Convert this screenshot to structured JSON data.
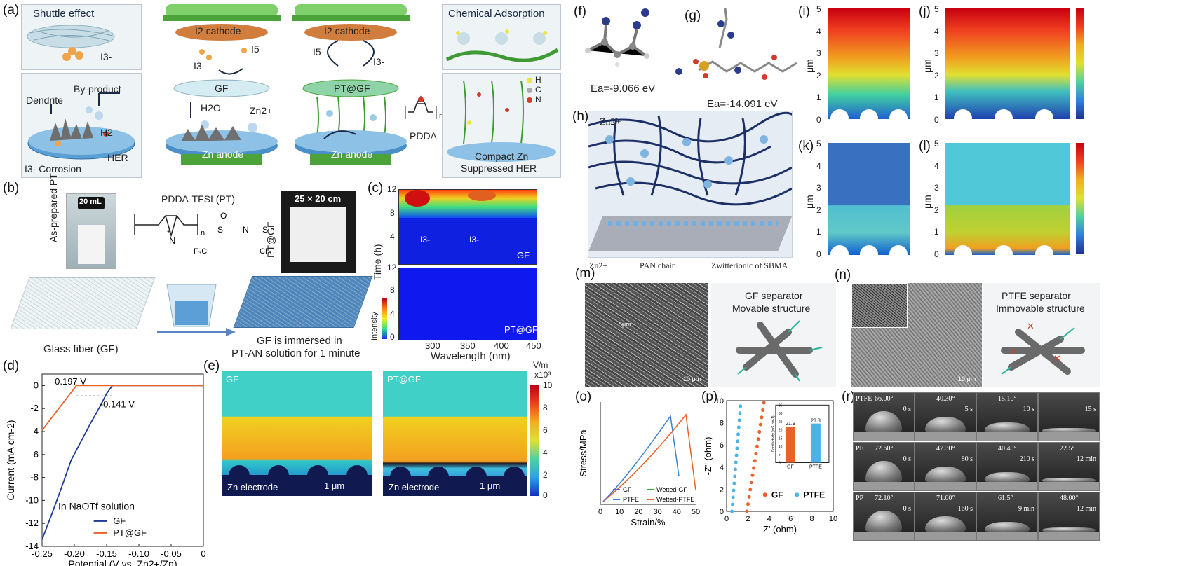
{
  "panels": {
    "a": "(a)",
    "b": "(b)",
    "c": "(c)",
    "d": "(d)",
    "e": "(e)",
    "f": "(f)",
    "g": "(g)",
    "h": "(h)",
    "i": "(i)",
    "j": "(j)",
    "k": "(k)",
    "l": "(l)",
    "m": "(m)",
    "n": "(n)",
    "o": "(o)",
    "p": "(p)",
    "r": "(r)"
  },
  "a": {
    "shuttle": "Shuttle effect",
    "i3_left": "I3-",
    "dendrite": "Dendrite",
    "byproduct": "By-product",
    "h2": "H2",
    "her": "HER",
    "corrosion": "I3- Corrosion",
    "cathode1": "I2 cathode",
    "cathode2": "I2 cathode",
    "i5_1": "I5-",
    "i3_1": "I3-",
    "gf": "GF",
    "h2o": "H2O",
    "zn2": "Zn2+",
    "anode1": "Zn anode",
    "i5_2": "I5-",
    "i3_2": "I3-",
    "ptgf": "PT@GF",
    "anode2": "Zn anode",
    "pdda": "PDDA",
    "n_sub": "n",
    "chem": "Chemical Adsorption",
    "legend": [
      "H",
      "C",
      "N"
    ],
    "compact1": "Compact Zn",
    "compact2": "Suppressed HER"
  },
  "b": {
    "vial": "20 mL",
    "asprep": "As-prepared PT",
    "pdda_tfsi": "PDDA-TFSI (PT)",
    "size": "25 × 20 cm",
    "ptgf": "PT@GF",
    "glass": "Glass fiber (GF)",
    "immersed1": "GF is immersed in",
    "immersed2": "PT-AN solution for 1 minute"
  },
  "c": {
    "ylabel": "Time (h)",
    "xlabel": "Wavelength (nm)",
    "gf": "GF",
    "ptgf": "PT@GF",
    "intensity": "Intensity",
    "i3a": "I3-",
    "i3b": "I3-",
    "yticks": [
      "0",
      "4",
      "8",
      "12"
    ],
    "xticks": [
      "300",
      "350",
      "400",
      "450"
    ]
  },
  "chart_data": {
    "type": "line",
    "title": "",
    "xlabel": "Potential (V vs. Zn2+/Zn)",
    "ylabel": "Current (mA cm-2)",
    "xlim": [
      -0.25,
      0
    ],
    "ylim": [
      -14,
      1
    ],
    "xticks": [
      "-0.25",
      "-0.20",
      "-0.15",
      "-0.10",
      "-0.05",
      "0"
    ],
    "yticks": [
      "0",
      "-2",
      "-4",
      "-6",
      "-8",
      "-10",
      "-12",
      "-14"
    ],
    "annotation_text": "In NaOTf solution",
    "ann_gf": "-0.141 V",
    "ann_pt": "-0.197 V",
    "colors": {
      "GF": "#1f3a93",
      "PT@GF": "#e8632a"
    },
    "series": [
      {
        "name": "GF",
        "x": [
          -0.25,
          -0.235,
          -0.22,
          -0.205,
          -0.19,
          -0.175,
          -0.16,
          -0.15,
          -0.141,
          -0.13,
          -0.1,
          -0.05,
          0
        ],
        "y": [
          -13.4,
          -11.2,
          -8.9,
          -6.5,
          -4.9,
          -3.3,
          -1.8,
          -0.7,
          0,
          0,
          0,
          0,
          0
        ]
      },
      {
        "name": "PT@GF",
        "x": [
          -0.25,
          -0.235,
          -0.22,
          -0.205,
          -0.197,
          -0.185,
          -0.17,
          -0.15,
          -0.1,
          -0.05,
          0
        ],
        "y": [
          -3.9,
          -2.8,
          -1.7,
          -0.6,
          0,
          0,
          0,
          0,
          0,
          0,
          0
        ]
      }
    ]
  },
  "e": {
    "unit": "V/m",
    "scale": "x10³",
    "ticks": [
      "10",
      "8",
      "6",
      "4",
      "2",
      "0"
    ],
    "gf": "GF",
    "ptgf": "PT@GF",
    "zn1": "Zn electrode",
    "zn2": "Zn electrode",
    "bar1": "1 μm",
    "bar2": "1 μm"
  },
  "f": {
    "ea": "Ea=-9.066 eV"
  },
  "g": {
    "ea": "Ea=-14.091 eV"
  },
  "h": {
    "zn2": "Zn2+",
    "legend_zn": "Zn2+",
    "legend_pan": "PAN chain",
    "legend_zw": "Zwitterionic of SBMA"
  },
  "ijkl": {
    "ylabel": "μm",
    "ticks": [
      "5",
      "4",
      "3",
      "2",
      "1",
      "0"
    ]
  },
  "m": {
    "title1": "GF separator",
    "title2": "Movable structure",
    "bar": "10 μm",
    "bar_inset": "5μm"
  },
  "n": {
    "title1": "PTFE separator",
    "title2": "Immovable structure",
    "bar": "10 μm"
  },
  "o": {
    "xlabel": "Strain/%",
    "ylabel": "Stress/MPa",
    "xticks": [
      "0",
      "10",
      "20",
      "30",
      "40",
      "50"
    ],
    "legend": [
      "GF",
      "Wetted-GF",
      "PTFE",
      "Wetted-PTFE"
    ]
  },
  "p": {
    "xlabel": "Z' (ohm)",
    "ylabel": "-Z'' (ohm)",
    "xticks": [
      "0",
      "2",
      "4",
      "6",
      "8",
      "10"
    ],
    "yticks": [
      "0",
      "2",
      "4",
      "6",
      "8",
      "10"
    ],
    "legend": [
      "GF",
      "PTFE"
    ],
    "inset_vals": [
      "21.9",
      "23.8"
    ],
    "inset_labels": [
      "GF",
      "PTFE"
    ],
    "inset_ylabel": "Conductivity (mS cm-1)",
    "inset_ticks": [
      "0",
      "5",
      "10",
      "15",
      "20",
      "25",
      "30",
      "35"
    ]
  },
  "r": {
    "rows": [
      {
        "name": "PTFE",
        "cells": [
          [
            "66.00°",
            "0 s"
          ],
          [
            "40.30°",
            "5 s"
          ],
          [
            "15.10°",
            "10 s"
          ],
          [
            "",
            "15 s"
          ]
        ]
      },
      {
        "name": "PE",
        "cells": [
          [
            "72.60°",
            "0 s"
          ],
          [
            "47.30°",
            "80 s"
          ],
          [
            "40.40°",
            "210 s"
          ],
          [
            "22.5°",
            "12 min"
          ]
        ]
      },
      {
        "name": "PP",
        "cells": [
          [
            "72.10°",
            "0 s"
          ],
          [
            "71.00°",
            "160 s"
          ],
          [
            "61.5°",
            "9 min"
          ],
          [
            "48.00°",
            "12 min"
          ]
        ]
      }
    ]
  }
}
